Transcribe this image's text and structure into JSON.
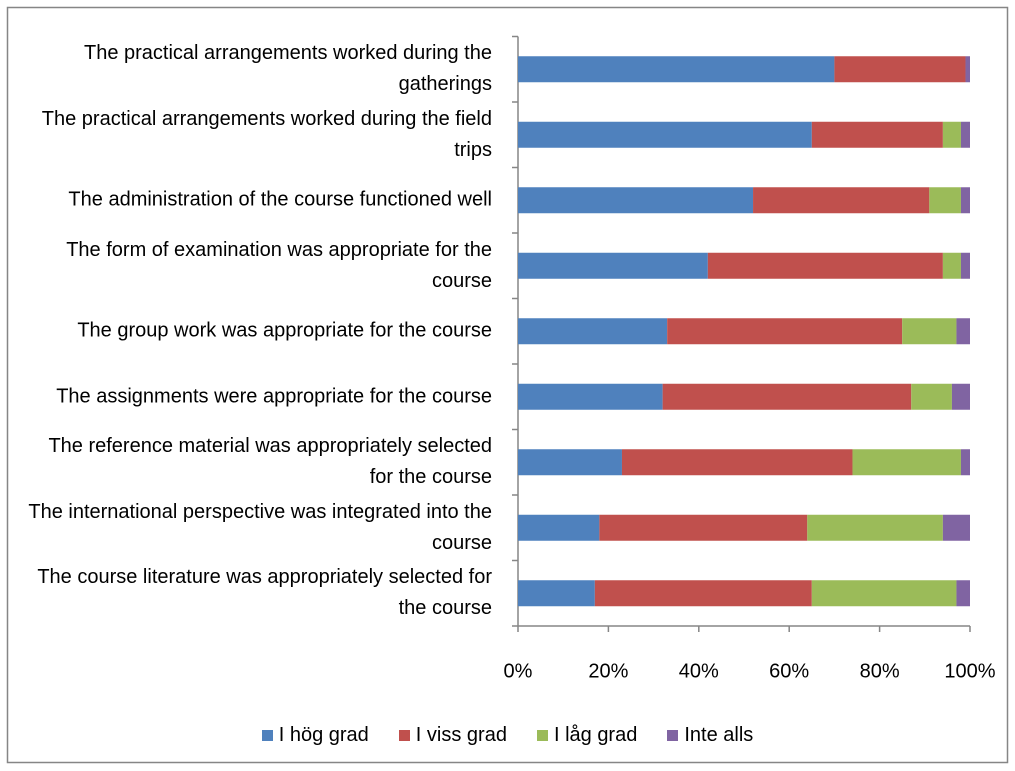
{
  "chart_data": {
    "type": "stacked_bar_horizontal",
    "categories": [
      "The practical arrangements worked during the gatherings",
      "The practical arrangements worked during the field trips",
      "The administration of the course functioned well",
      "The form of examination was appropriate for the course",
      "The group work was appropriate for the course",
      "The assignments were appropriate for the course",
      "The reference material was appropriately selected for the course",
      "The international perspective was integrated into the course",
      "The course literature was appropriately selected for the course"
    ],
    "series": [
      {
        "name": "I hög grad",
        "color": "#4f81bd",
        "values": [
          70,
          65,
          52,
          42,
          33,
          32,
          23,
          18,
          17
        ]
      },
      {
        "name": "I viss grad",
        "color": "#c0504d",
        "values": [
          29,
          29,
          39,
          52,
          52,
          55,
          51,
          46,
          48
        ]
      },
      {
        "name": "I låg grad",
        "color": "#9bbb59",
        "values": [
          0,
          4,
          7,
          4,
          12,
          9,
          24,
          30,
          32
        ]
      },
      {
        "name": "Inte alls",
        "color": "#8064a2",
        "values": [
          1,
          2,
          2,
          2,
          3,
          4,
          2,
          6,
          3
        ]
      }
    ],
    "xlim": [
      0,
      100
    ],
    "xticks": [
      {
        "value": 0,
        "label": "0%"
      },
      {
        "value": 20,
        "label": "20%"
      },
      {
        "value": 40,
        "label": "40%"
      },
      {
        "value": 60,
        "label": "60%"
      },
      {
        "value": 80,
        "label": "80%"
      },
      {
        "value": 100,
        "label": "100%"
      }
    ],
    "legend": "bottom"
  }
}
